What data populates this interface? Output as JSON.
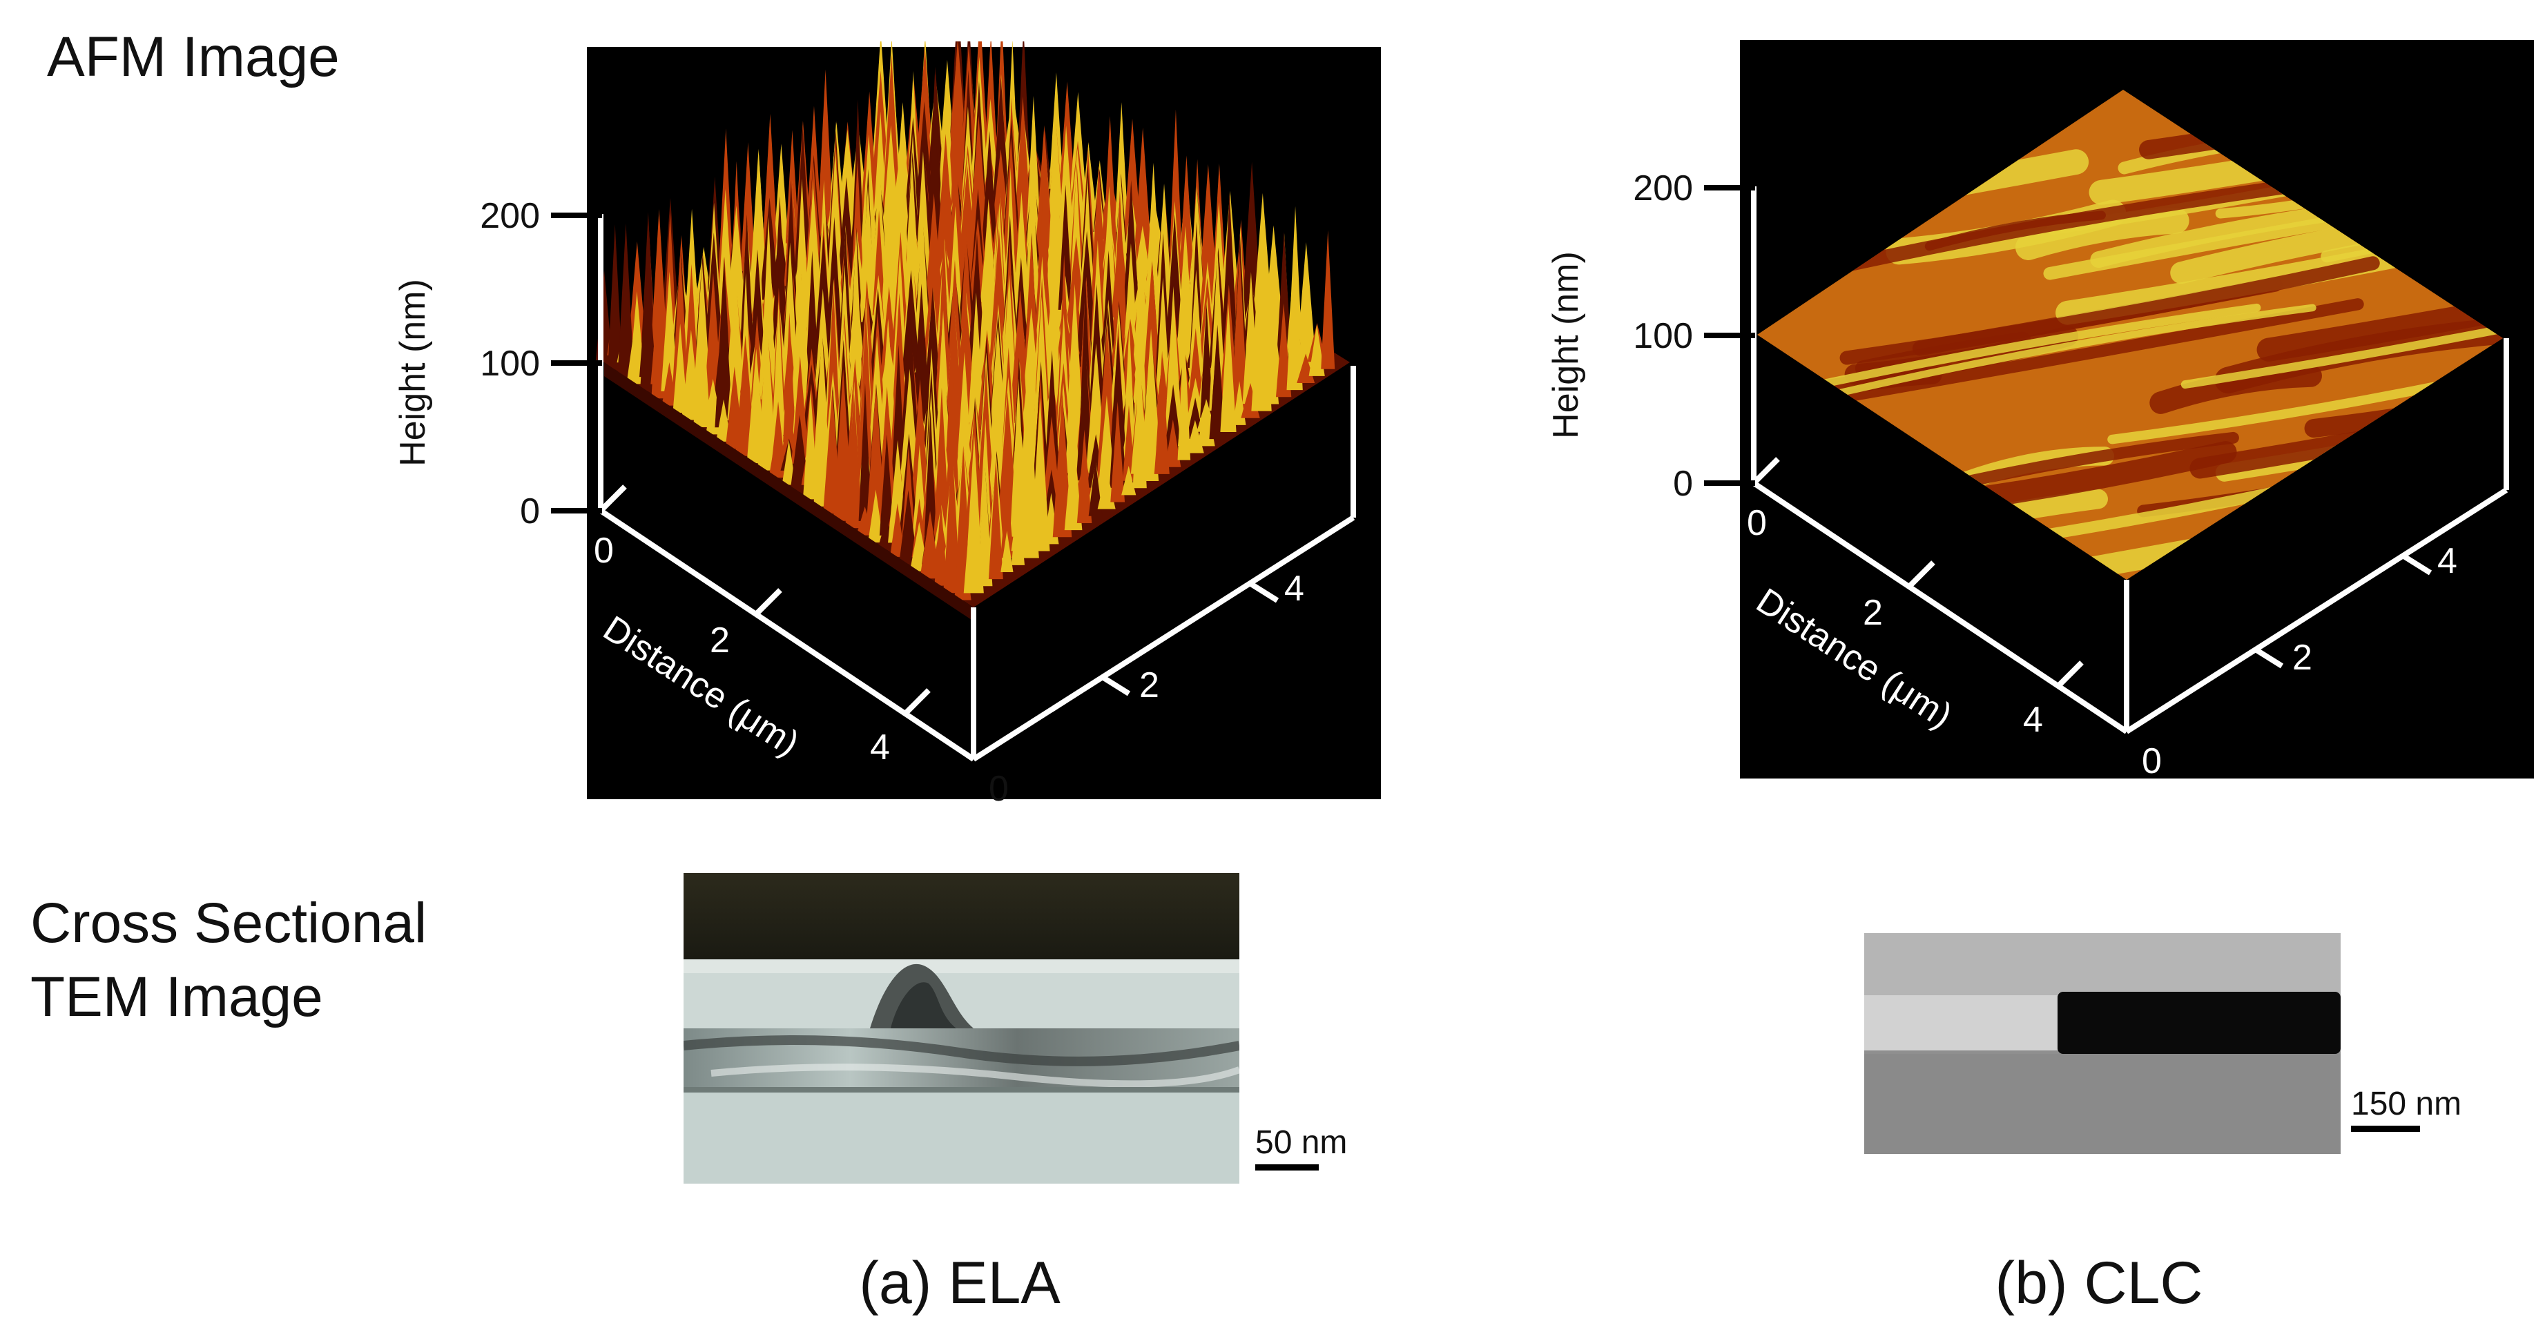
{
  "row_labels": {
    "afm": "AFM Image",
    "tem": "Cross Sectional\nTEM Image"
  },
  "panels": [
    {
      "id": "ela",
      "caption": "(a) ELA",
      "afm": {
        "height_axis_label": "Height (nm)",
        "height_ticks": [
          "0",
          "100",
          "200"
        ],
        "distance_axis_label": "Distance (μm)",
        "distance_ticks_left": [
          "0",
          "2",
          "4"
        ],
        "distance_ticks_right": [
          "0",
          "2",
          "4"
        ],
        "surface": "dense-spikes",
        "colors": {
          "dark": "#5a0f00",
          "mid": "#c2400a",
          "light": "#e8c020"
        }
      },
      "tem": {
        "scale_label": "50 nm"
      }
    },
    {
      "id": "clc",
      "caption": "(b) CLC",
      "afm": {
        "height_axis_label": "Height (nm)",
        "height_ticks": [
          "0",
          "100",
          "200"
        ],
        "distance_axis_label": "Distance (μm)",
        "distance_ticks_left": [
          "0",
          "2",
          "4"
        ],
        "distance_ticks_right": [
          "0",
          "2",
          "4"
        ],
        "surface": "smooth-streaks",
        "colors": {
          "dark": "#8a1f00",
          "mid": "#c86a10",
          "light": "#e6d23a"
        }
      },
      "tem": {
        "scale_label": "150 nm"
      }
    }
  ]
}
